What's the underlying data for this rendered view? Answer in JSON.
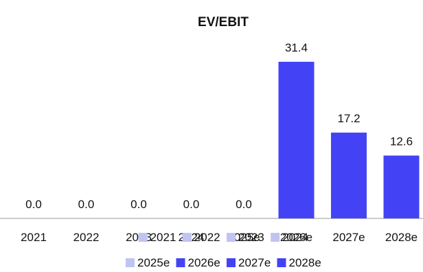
{
  "chart_data": {
    "type": "bar",
    "title": "EV/EBIT",
    "categories": [
      "2021",
      "2022",
      "2023",
      "2024",
      "2025e",
      "2026e",
      "2027e",
      "2028e"
    ],
    "values": [
      0.0,
      0.0,
      0.0,
      0.0,
      0.0,
      31.4,
      17.2,
      12.6
    ],
    "data_labels": [
      "0.0",
      "0.0",
      "0.0",
      "0.0",
      "0.0",
      "31.4",
      "17.2",
      "12.6"
    ],
    "ylim": [
      0,
      38
    ],
    "grid": false,
    "legend_position": "bottom",
    "legend_row1": [
      {
        "label": "2021",
        "color": "#c0c4f2"
      },
      {
        "label": "2022",
        "color": "#c0c4f2"
      },
      {
        "label": "2023",
        "color": "#c0c4f2"
      },
      {
        "label": "2024",
        "color": "#c0c4f2"
      }
    ],
    "legend_row2": [
      {
        "label": "2025e",
        "color": "#c0c4f2"
      },
      {
        "label": "2026e",
        "color": "#4343f5"
      },
      {
        "label": "2027e",
        "color": "#4343f5"
      },
      {
        "label": "2028e",
        "color": "#4343f5"
      }
    ],
    "bar_color": "#4343f5",
    "axis_color": "#999999"
  }
}
